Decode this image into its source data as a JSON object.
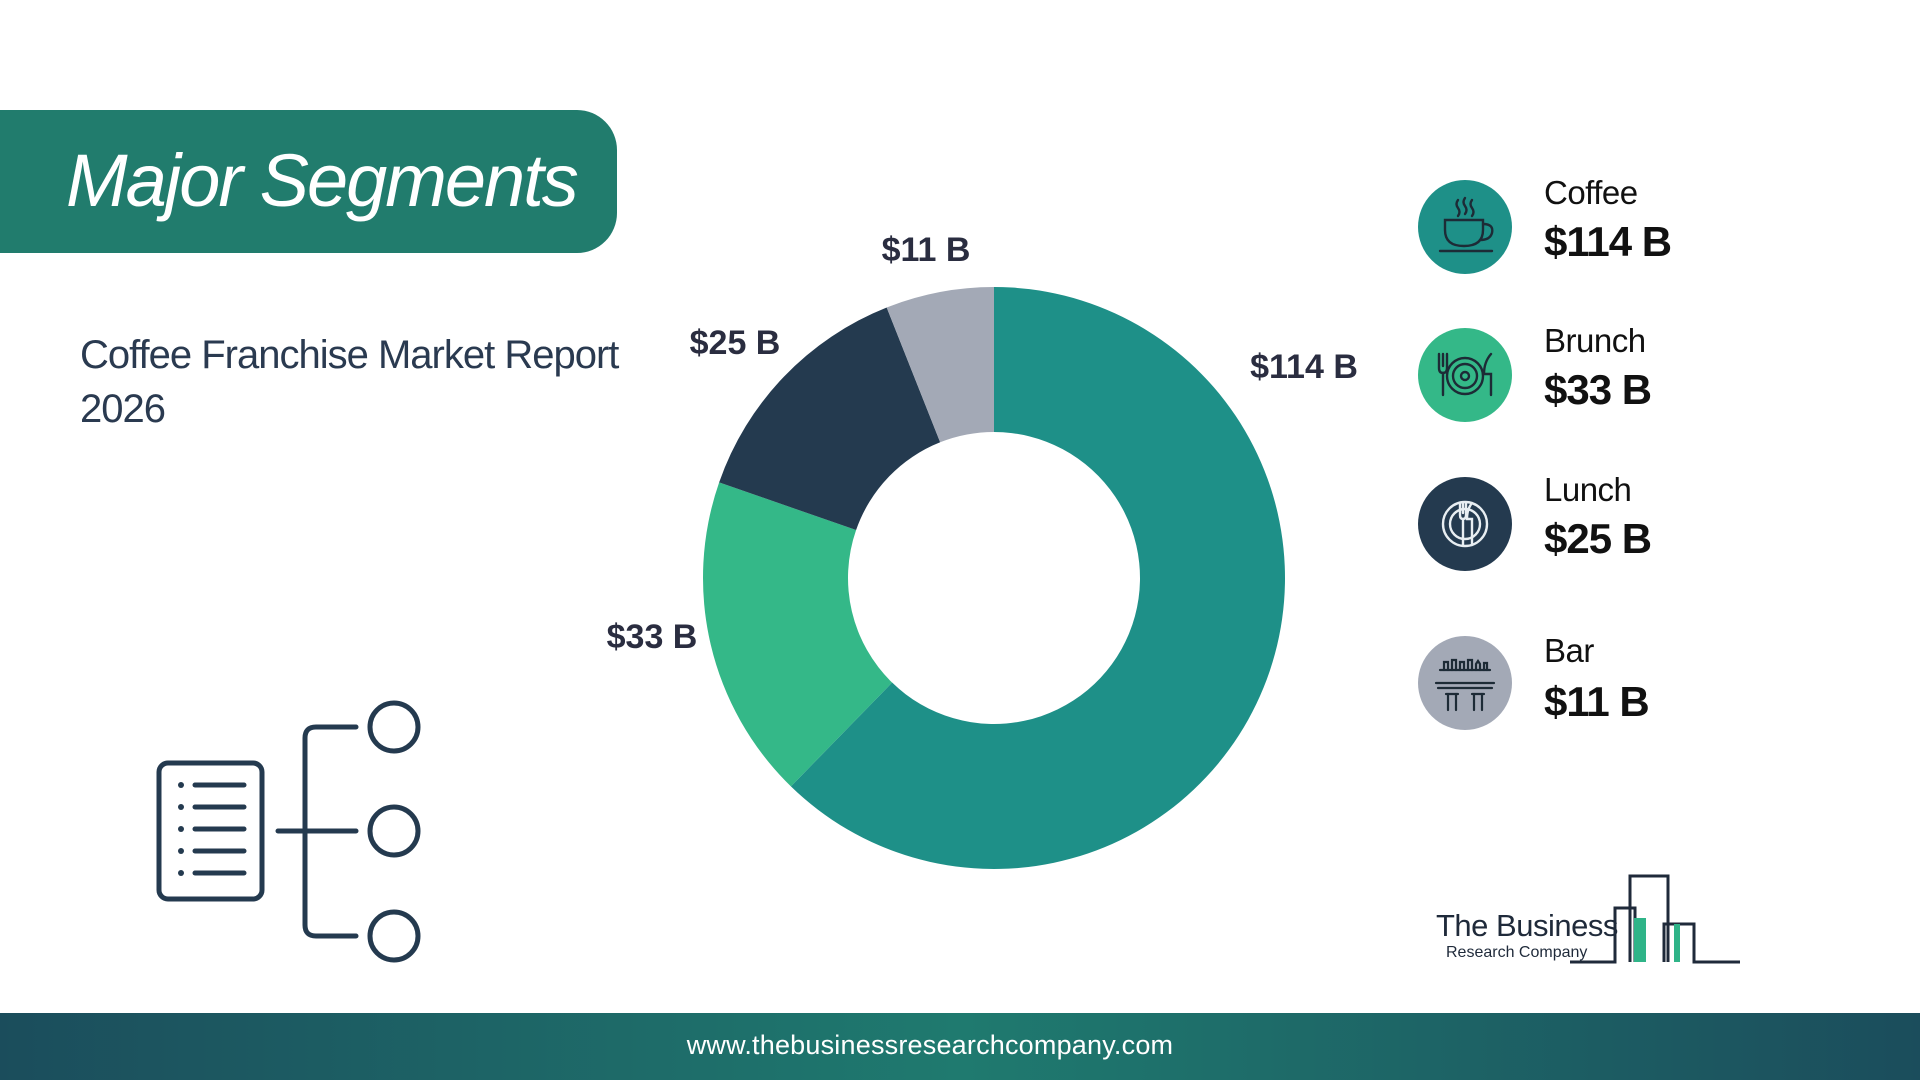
{
  "title": "Major Segments",
  "subtitle": "Coffee Franchise Market Report 2026",
  "colors": {
    "banner": "#217c6d",
    "coffee": "#1e9088",
    "brunch": "#34b888",
    "lunch": "#243a4f",
    "bar": "#a3a9b6",
    "footer": "#1f6a6a"
  },
  "chart_data": {
    "type": "pie",
    "variant": "donut",
    "title": "",
    "series": [
      {
        "name": "Coffee",
        "value": 114,
        "label": "$114 B",
        "color": "#1e9088",
        "icon": "coffee-cup-icon"
      },
      {
        "name": "Brunch",
        "value": 33,
        "label": "$33 B",
        "color": "#34b888",
        "icon": "plate-fork-knife-icon"
      },
      {
        "name": "Lunch",
        "value": 25,
        "label": "$25 B",
        "color": "#243a4f",
        "icon": "dinner-plate-icon"
      },
      {
        "name": "Bar",
        "value": 11,
        "label": "$11 B",
        "color": "#a3a9b6",
        "icon": "bar-counter-icon"
      }
    ],
    "legend_position": "right"
  },
  "legend": [
    {
      "name": "Coffee",
      "value": "$114 B"
    },
    {
      "name": "Brunch",
      "value": "$33 B"
    },
    {
      "name": "Lunch",
      "value": "$25 B"
    },
    {
      "name": "Bar",
      "value": "$11 B"
    }
  ],
  "logo": {
    "main": "The Business",
    "sub": "Research Company"
  },
  "footer": {
    "url": "www.thebusinessresearchcompany.com"
  }
}
